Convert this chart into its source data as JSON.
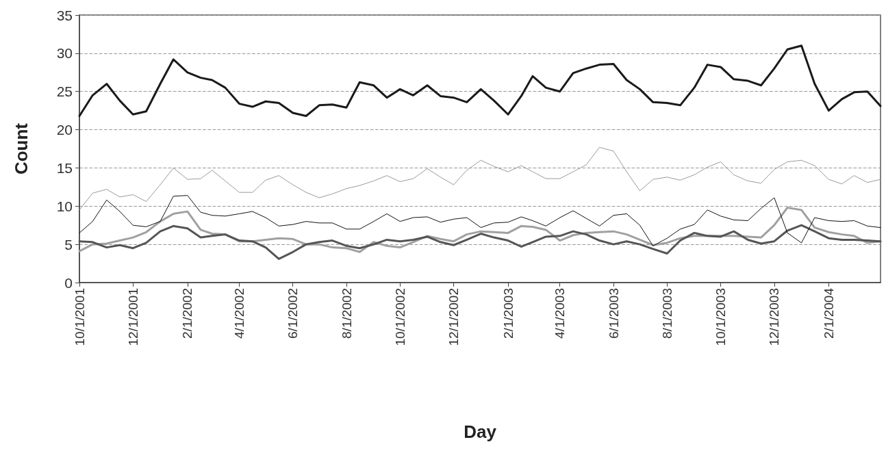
{
  "chart_data": {
    "type": "line",
    "xlabel": "Day",
    "ylabel": "Count",
    "marker": "none",
    "line_style": "solid",
    "grid": "y",
    "x": [
      "2001-10-01",
      "2001-10-16",
      "2001-11-01",
      "2001-11-16",
      "2001-12-01",
      "2001-12-16",
      "2002-01-01",
      "2002-01-16",
      "2002-02-01",
      "2002-02-16",
      "2002-03-01",
      "2002-03-16",
      "2002-04-01",
      "2002-04-16",
      "2002-05-01",
      "2002-05-16",
      "2002-06-01",
      "2002-06-16",
      "2002-07-01",
      "2002-07-16",
      "2002-08-01",
      "2002-08-16",
      "2002-09-01",
      "2002-09-16",
      "2002-10-01",
      "2002-10-16",
      "2002-11-01",
      "2002-11-16",
      "2002-12-01",
      "2002-12-16",
      "2003-01-01",
      "2003-01-16",
      "2003-02-01",
      "2003-02-16",
      "2003-03-01",
      "2003-03-16",
      "2003-04-01",
      "2003-04-16",
      "2003-05-01",
      "2003-05-16",
      "2003-06-01",
      "2003-06-16",
      "2003-07-01",
      "2003-07-16",
      "2003-08-01",
      "2003-08-16",
      "2003-09-01",
      "2003-09-16",
      "2003-10-01",
      "2003-10-16",
      "2003-11-01",
      "2003-11-16",
      "2003-12-01",
      "2003-12-16",
      "2004-01-01",
      "2004-01-16",
      "2004-02-01",
      "2004-02-16",
      "2004-03-01",
      "2004-03-16",
      "2004-03-31"
    ],
    "series": [
      {
        "color": "#1a1a1a",
        "values": [
          21.8,
          24.5,
          26.0,
          23.8,
          22.0,
          22.4,
          26,
          29.2,
          27.5,
          26.8,
          26.5,
          25.5,
          23.4,
          23.0,
          23.7,
          23.5,
          22.2,
          21.8,
          23.2,
          23.3,
          22.9,
          26.2,
          25.8,
          24.2,
          25.3,
          24.5,
          25.8,
          24.4,
          24.2,
          23.6,
          25.3,
          23.8,
          22.0,
          24.4,
          27.0,
          25.5,
          25.0,
          27.4,
          28.0,
          28.5,
          28.6,
          26.5,
          25.3,
          23.6,
          23.5,
          23.2,
          25.5,
          28.5,
          28.2,
          26.6,
          26.4,
          25.8,
          28.0,
          30.5,
          31.0,
          26,
          22.5,
          24.0,
          24.9,
          25.0,
          23.1
        ]
      },
      {
        "color": "#9a9a9a",
        "values": [
          9.5,
          11.7,
          12.2,
          11.2,
          11.5,
          10.6,
          12.8,
          15.0,
          13.5,
          13.6,
          14.7,
          13.3,
          11.8,
          11.8,
          13.4,
          14.0,
          12.8,
          11.8,
          11.1,
          11.6,
          12.3,
          12.7,
          13.3,
          14.0,
          13.2,
          13.6,
          14.9,
          13.8,
          12.8,
          14.7,
          16.0,
          15.2,
          14.5,
          15.3,
          14.5,
          13.6,
          13.6,
          14.5,
          15.4,
          17.7,
          17.2,
          14.5,
          12.0,
          13.5,
          13.8,
          13.4,
          14.1,
          15.1,
          15.8,
          14.1,
          13.3,
          13.0,
          14.8,
          15.8,
          16.0,
          15.3,
          13.5,
          12.9,
          14.0,
          13.1,
          13.5
        ]
      },
      {
        "color": "#111111",
        "values": [
          6.5,
          8.0,
          10.8,
          9.3,
          7.5,
          7.3,
          8.0,
          11.3,
          11.4,
          9.2,
          8.8,
          8.7,
          9.0,
          9.3,
          8.5,
          7.4,
          7.6,
          8.0,
          7.8,
          7.8,
          7.0,
          7.0,
          8.0,
          9.0,
          8.0,
          8.5,
          8.6,
          7.9,
          8.3,
          8.5,
          7.2,
          7.8,
          7.9,
          8.6,
          8.1,
          7.4,
          8.5,
          9.4,
          8.4,
          7.4,
          8.8,
          9.0,
          7.5,
          4.8,
          5.8,
          7.0,
          7.6,
          9.5,
          8.7,
          8.2,
          8.1,
          9.7,
          11.1,
          6.5,
          5.2,
          8.5,
          8.1,
          8.0,
          8.1,
          7.4,
          7.2
        ]
      },
      {
        "color": "#555555",
        "values": [
          5.4,
          5.3,
          4.6,
          4.9,
          4.5,
          5.2,
          6.7,
          7.4,
          7.1,
          5.9,
          6.1,
          6.3,
          5.5,
          5.4,
          4.6,
          3.1,
          4.0,
          5.0,
          5.3,
          5.5,
          4.8,
          4.5,
          5.0,
          5.6,
          5.4,
          5.6,
          6.0,
          5.3,
          4.9,
          5.6,
          6.4,
          5.9,
          5.5,
          4.7,
          5.3,
          6.0,
          6.1,
          6.7,
          6.3,
          5.5,
          5.0,
          5.4,
          5.0,
          4.4,
          3.8,
          5.5,
          6.5,
          6.1,
          6.0,
          6.7,
          5.6,
          5.1,
          5.4,
          6.8,
          7.5,
          6.7,
          5.8,
          5.6,
          5.6,
          5.5,
          5.4
        ]
      },
      {
        "color": "#a0a0a0",
        "values": [
          4.1,
          5.0,
          5.1,
          5.5,
          5.9,
          6.6,
          8.0,
          9.0,
          9.3,
          6.9,
          6.4,
          6.3,
          5.4,
          5.4,
          5.6,
          5.8,
          5.7,
          5.0,
          5.0,
          4.6,
          4.5,
          4.0,
          5.3,
          4.8,
          4.6,
          5.3,
          6.1,
          5.7,
          5.4,
          6.3,
          6.7,
          6.6,
          6.5,
          7.4,
          7.3,
          6.9,
          5.5,
          6.2,
          6.5,
          6.6,
          6.7,
          6.3,
          5.6,
          4.9,
          5.2,
          5.8,
          6.1,
          6.1,
          6.1,
          6.1,
          6.0,
          5.9,
          7.5,
          9.8,
          9.5,
          7.2,
          6.6,
          6.3,
          6.1,
          5.2,
          5.4
        ]
      }
    ],
    "xlim": [
      "2001-10-01",
      "2004-03-31"
    ],
    "xticks": [
      {
        "value": "2001-10-01",
        "label": "10/1/2001"
      },
      {
        "value": "2001-12-01",
        "label": "12/1/2001"
      },
      {
        "value": "2002-02-01",
        "label": "2/1/2002"
      },
      {
        "value": "2002-04-01",
        "label": "4/1/2002"
      },
      {
        "value": "2002-06-01",
        "label": "6/1/2002"
      },
      {
        "value": "2002-08-01",
        "label": "8/1/2002"
      },
      {
        "value": "2002-10-01",
        "label": "10/1/2002"
      },
      {
        "value": "2002-12-01",
        "label": "12/1/2002"
      },
      {
        "value": "2003-02-01",
        "label": "2/1/2003"
      },
      {
        "value": "2003-04-01",
        "label": "4/1/2003"
      },
      {
        "value": "2003-06-01",
        "label": "6/1/2003"
      },
      {
        "value": "2003-08-01",
        "label": "8/1/2003"
      },
      {
        "value": "2003-10-01",
        "label": "10/1/2003"
      },
      {
        "value": "2003-12-01",
        "label": "12/1/2003"
      },
      {
        "value": "2004-02-01",
        "label": "2/1/2004"
      }
    ],
    "ylim": [
      0,
      35
    ],
    "yticks": [
      0,
      5,
      10,
      15,
      20,
      25,
      30,
      35
    ]
  }
}
